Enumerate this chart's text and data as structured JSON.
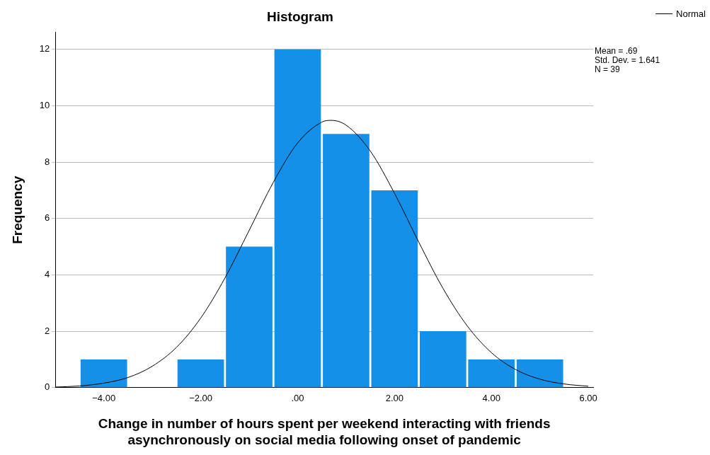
{
  "chart_data": {
    "type": "histogram",
    "title": "Histogram",
    "xlabel": "Change in number of hours spent per weekend interacting with friends asynchronously on social media following onset of pandemic",
    "ylabel": "Frequency",
    "bins": [
      -4.5,
      -3.5,
      -2.5,
      -1.5,
      -0.5,
      0.5,
      1.5,
      2.5,
      3.5,
      4.5,
      5.5
    ],
    "series": [
      {
        "color": "#1490e8",
        "values": [
          1,
          0,
          1,
          5,
          12,
          9,
          7,
          2,
          1,
          1
        ]
      },
      {
        "name": "Normal",
        "type": "line",
        "color": "#000000",
        "x": [
          -5,
          -4.5,
          -4,
          -3.5,
          -3,
          -2.5,
          -2,
          -1.5,
          -1,
          -0.5,
          0,
          0.5,
          0.69,
          1,
          1.5,
          2,
          2.5,
          3,
          3.5,
          4,
          4.5,
          5,
          5.5,
          6
        ],
        "values": [
          0.02,
          0.06,
          0.16,
          0.36,
          0.76,
          1.43,
          2.47,
          3.89,
          5.58,
          7.29,
          8.68,
          9.42,
          9.48,
          9.31,
          8.39,
          6.89,
          5.16,
          3.52,
          2.19,
          1.24,
          0.64,
          0.3,
          0.13,
          0.05
        ]
      }
    ],
    "xlim": [
      -5,
      6.1
    ],
    "xticks": [
      {
        "value": -4,
        "label": "−4.00"
      },
      {
        "value": -2,
        "label": "−2.00"
      },
      {
        "value": 0,
        "label": ".00"
      },
      {
        "value": 2,
        "label": "2.00"
      },
      {
        "value": 4,
        "label": "4.00"
      },
      {
        "value": 6,
        "label": "6.00"
      }
    ],
    "ylim": [
      0,
      12.6
    ],
    "yticks": [
      0,
      2,
      4,
      6,
      8,
      10,
      12
    ],
    "grid": "y",
    "legend": "top right",
    "marker": "none",
    "annotations": [
      "Mean = .69",
      "Std. Dev. = 1.641",
      "N = 39"
    ]
  }
}
